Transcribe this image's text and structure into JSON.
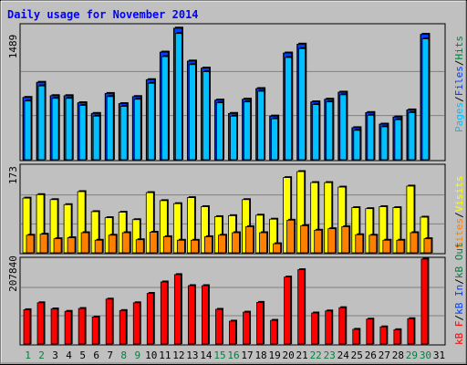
{
  "title": "Daily usage for November 2014",
  "colors": {
    "background": "#C0C0C0",
    "title": "#0000FF",
    "pages": "#00C0FF",
    "files": "#0040FF",
    "hits": "#008040",
    "visits": "#FFFF00",
    "sites": "#FF8000",
    "kb_f": "#FF0000",
    "weekend_day": "#008040",
    "weekday": "#000000"
  },
  "legend_top": {
    "pages": "Pages",
    "files": "Files",
    "hits": "Hits",
    "sep1": "/",
    "sep2": "/"
  },
  "legend_mid": {
    "visits": "Visits",
    "sites": "Sites",
    "sep": "/"
  },
  "legend_bot": {
    "kb_f": "kB F",
    "kb_in": "kB In",
    "kb_out": "kB Out",
    "sep1": "/",
    "sep2": "/"
  },
  "chart_data": [
    {
      "type": "bar",
      "panel": "hits-files-pages",
      "ymax_label": "1489",
      "ylim": [
        0,
        1489
      ],
      "categories": [
        "1",
        "2",
        "3",
        "4",
        "5",
        "6",
        "7",
        "8",
        "9",
        "10",
        "11",
        "12",
        "13",
        "14",
        "15",
        "16",
        "17",
        "18",
        "19",
        "20",
        "21",
        "22",
        "23",
        "24",
        "25",
        "26",
        "27",
        "28",
        "29",
        "30",
        "31"
      ],
      "weekend_days": [
        "1",
        "2",
        "8",
        "9",
        "15",
        "16",
        "22",
        "23",
        "29",
        "30"
      ],
      "series": [
        {
          "name": "Hits",
          "values": [
            700,
            870,
            720,
            720,
            640,
            520,
            745,
            630,
            710,
            900,
            1210,
            1480,
            1110,
            1030,
            670,
            520,
            680,
            800,
            490,
            1200,
            1300,
            650,
            680,
            760,
            360,
            530,
            400,
            480,
            560,
            1410,
            0
          ]
        },
        {
          "name": "Files",
          "values": [
            700,
            870,
            720,
            720,
            640,
            520,
            745,
            630,
            710,
            900,
            1210,
            1480,
            1110,
            1030,
            670,
            520,
            680,
            800,
            490,
            1200,
            1300,
            650,
            680,
            760,
            360,
            530,
            400,
            480,
            560,
            1410,
            0
          ]
        },
        {
          "name": "Pages",
          "values": [
            660,
            830,
            690,
            690,
            610,
            490,
            710,
            600,
            680,
            860,
            1160,
            1420,
            1070,
            990,
            640,
            490,
            650,
            770,
            460,
            1150,
            1250,
            620,
            650,
            730,
            330,
            500,
            370,
            450,
            530,
            1360,
            0
          ]
        }
      ]
    },
    {
      "type": "bar",
      "panel": "sites-visits",
      "ymax_label": "173",
      "ylim": [
        0,
        173
      ],
      "categories": [
        "1",
        "2",
        "3",
        "4",
        "5",
        "6",
        "7",
        "8",
        "9",
        "10",
        "11",
        "12",
        "13",
        "14",
        "15",
        "16",
        "17",
        "18",
        "19",
        "20",
        "21",
        "22",
        "23",
        "24",
        "25",
        "26",
        "27",
        "28",
        "29",
        "30",
        "31"
      ],
      "series": [
        {
          "name": "Visits",
          "values": [
            109,
            116,
            106,
            96,
            122,
            82,
            70,
            81,
            66,
            120,
            104,
            98,
            110,
            92,
            72,
            74,
            106,
            75,
            67,
            150,
            162,
            140,
            140,
            131,
            90,
            88,
            92,
            90,
            133,
            71,
            0
          ]
        },
        {
          "name": "Sites",
          "values": [
            35,
            37,
            28,
            30,
            40,
            25,
            35,
            40,
            26,
            41,
            32,
            25,
            25,
            32,
            35,
            40,
            52,
            40,
            18,
            65,
            54,
            45,
            48,
            52,
            36,
            35,
            25,
            25,
            40,
            28,
            0
          ]
        }
      ]
    },
    {
      "type": "bar",
      "panel": "kb",
      "ymax_label": "207840",
      "ylim": [
        0,
        207840
      ],
      "categories": [
        "1",
        "2",
        "3",
        "4",
        "5",
        "6",
        "7",
        "8",
        "9",
        "10",
        "11",
        "12",
        "13",
        "14",
        "15",
        "16",
        "17",
        "18",
        "19",
        "20",
        "21",
        "22",
        "23",
        "24",
        "25",
        "26",
        "27",
        "28",
        "29",
        "30",
        "31"
      ],
      "series": [
        {
          "name": "kB F",
          "values": [
            84000,
            101000,
            86000,
            80000,
            87000,
            66000,
            110000,
            82000,
            101000,
            124000,
            152000,
            170000,
            143000,
            143000,
            85000,
            56000,
            78000,
            102000,
            58000,
            164000,
            182000,
            76000,
            81000,
            89000,
            36000,
            61000,
            42000,
            35000,
            62000,
            208000,
            0
          ]
        }
      ]
    }
  ]
}
